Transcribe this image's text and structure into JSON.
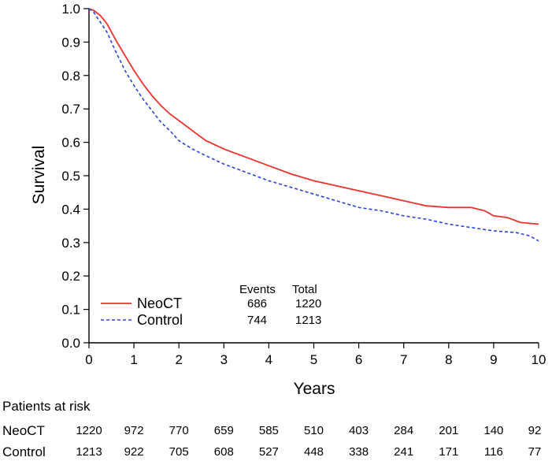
{
  "chart_data": {
    "type": "line",
    "title": "",
    "xlabel": "Years",
    "ylabel": "Survival",
    "xlim": [
      0,
      10
    ],
    "ylim": [
      0.0,
      1.0
    ],
    "x_ticks": [
      "0",
      "1",
      "2",
      "3",
      "4",
      "5",
      "6",
      "7",
      "8",
      "9",
      "10"
    ],
    "y_ticks": [
      "0.0",
      "0.1",
      "0.2",
      "0.3",
      "0.4",
      "0.5",
      "0.6",
      "0.7",
      "0.8",
      "0.9",
      "1.0"
    ],
    "grid": false,
    "legend_position": "bottom-left",
    "series": [
      {
        "name": "NeoCT",
        "color": "#e8322c",
        "style": "solid",
        "events": "686",
        "total": "1220",
        "x": [
          0,
          0.1,
          0.25,
          0.4,
          0.6,
          0.8,
          1.0,
          1.2,
          1.4,
          1.6,
          1.8,
          2.0,
          2.3,
          2.6,
          3.0,
          3.5,
          4.0,
          4.5,
          5.0,
          5.5,
          6.0,
          6.5,
          7.0,
          7.5,
          8.0,
          8.5,
          8.8,
          9.0,
          9.3,
          9.6,
          10.0
        ],
        "y": [
          1.0,
          0.995,
          0.98,
          0.955,
          0.905,
          0.86,
          0.815,
          0.775,
          0.74,
          0.71,
          0.685,
          0.665,
          0.635,
          0.605,
          0.58,
          0.555,
          0.53,
          0.505,
          0.485,
          0.47,
          0.455,
          0.44,
          0.425,
          0.41,
          0.405,
          0.405,
          0.395,
          0.38,
          0.375,
          0.36,
          0.355
        ]
      },
      {
        "name": "Control",
        "color": "#2b44d6",
        "style": "dashed",
        "events": "744",
        "total": "1213",
        "x": [
          0,
          0.1,
          0.25,
          0.4,
          0.6,
          0.8,
          1.0,
          1.2,
          1.4,
          1.6,
          1.8,
          2.0,
          2.3,
          2.6,
          3.0,
          3.5,
          4.0,
          4.5,
          5.0,
          5.5,
          6.0,
          6.5,
          7.0,
          7.5,
          8.0,
          8.5,
          9.0,
          9.5,
          9.8,
          10.0
        ],
        "y": [
          1.0,
          0.99,
          0.96,
          0.93,
          0.87,
          0.815,
          0.77,
          0.73,
          0.695,
          0.66,
          0.635,
          0.605,
          0.58,
          0.56,
          0.535,
          0.51,
          0.485,
          0.465,
          0.445,
          0.425,
          0.405,
          0.395,
          0.38,
          0.37,
          0.355,
          0.345,
          0.335,
          0.33,
          0.32,
          0.305
        ]
      }
    ],
    "legend_headers": {
      "events": "Events",
      "total": "Total"
    },
    "risk_table": {
      "title": "Patients at risk",
      "rows": [
        {
          "label": "NeoCT",
          "values": [
            "1220",
            "972",
            "770",
            "659",
            "585",
            "510",
            "403",
            "284",
            "201",
            "140",
            "92"
          ]
        },
        {
          "label": "Control",
          "values": [
            "1213",
            "922",
            "705",
            "608",
            "527",
            "448",
            "338",
            "241",
            "171",
            "116",
            "77"
          ]
        }
      ]
    }
  }
}
